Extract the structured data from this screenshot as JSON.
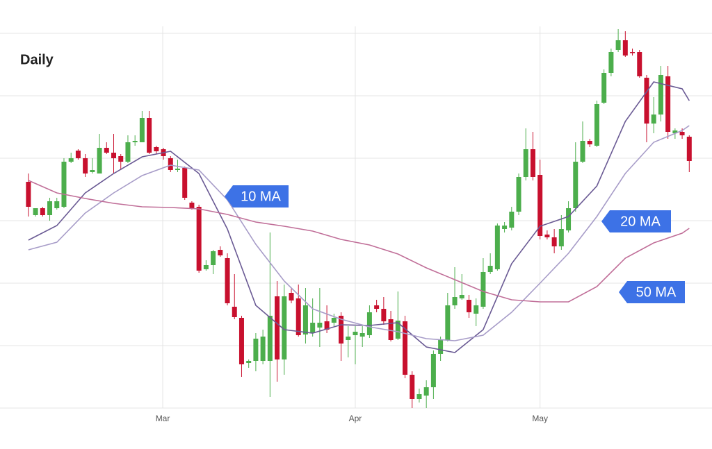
{
  "chart_data": {
    "type": "candlestick",
    "title": "Daily",
    "up_color": "#4cae4c",
    "down_color": "#c8102e",
    "xlim": [
      -4,
      96.2
    ],
    "xticks": [
      {
        "value": 18.9,
        "label": "Mar"
      },
      {
        "value": 46,
        "label": "Apr"
      },
      {
        "value": 72,
        "label": "May"
      }
    ],
    "ylim": [
      0,
      588
    ],
    "yticks": [
      0,
      90,
      180,
      270,
      360,
      450,
      540
    ],
    "show_ytick_labels": false,
    "grid": true,
    "open": [
      326,
      278,
      288,
      278,
      288,
      290,
      355,
      371,
      360,
      340,
      338,
      375,
      368,
      363,
      355,
      383,
      383,
      418,
      376,
      373,
      360,
      343,
      346,
      296,
      290,
      200,
      206,
      228,
      216,
      146,
      130,
      65,
      68,
      68,
      68,
      161,
      70,
      166,
      158,
      106,
      108,
      116,
      125,
      123,
      133,
      98,
      105,
      103,
      105,
      148,
      143,
      128,
      100,
      125,
      48,
      13,
      18,
      30,
      78,
      98,
      148,
      158,
      156,
      136,
      146,
      196,
      200,
      258,
      260,
      283,
      333,
      373,
      336,
      250,
      246,
      233,
      256,
      288,
      355,
      385,
      378,
      440,
      483,
      516,
      530,
      513,
      513,
      476,
      410,
      423,
      478,
      396,
      398,
      391
    ],
    "high": [
      338,
      288,
      290,
      303,
      303,
      360,
      368,
      373,
      366,
      360,
      395,
      383,
      395,
      366,
      393,
      393,
      428,
      428,
      378,
      375,
      363,
      358,
      348,
      298,
      293,
      213,
      228,
      233,
      223,
      193,
      133,
      70,
      108,
      113,
      253,
      183,
      178,
      173,
      178,
      173,
      158,
      173,
      148,
      136,
      138,
      118,
      118,
      118,
      148,
      156,
      160,
      140,
      168,
      133,
      53,
      28,
      40,
      83,
      103,
      166,
      203,
      193,
      163,
      158,
      216,
      223,
      266,
      268,
      290,
      338,
      403,
      398,
      358,
      256,
      258,
      278,
      298,
      383,
      413,
      388,
      443,
      488,
      518,
      546,
      543,
      518,
      516,
      480,
      448,
      493,
      493,
      403,
      403,
      393
    ],
    "low": [
      276,
      276,
      276,
      270,
      286,
      288,
      353,
      358,
      333,
      338,
      338,
      366,
      338,
      343,
      353,
      378,
      383,
      366,
      366,
      358,
      340,
      340,
      300,
      286,
      195,
      198,
      193,
      218,
      148,
      128,
      45,
      58,
      53,
      63,
      16,
      38,
      48,
      151,
      103,
      93,
      103,
      88,
      108,
      118,
      68,
      73,
      63,
      88,
      101,
      138,
      120,
      96,
      98,
      43,
      0,
      8,
      0,
      13,
      68,
      96,
      143,
      156,
      130,
      118,
      143,
      193,
      198,
      253,
      256,
      278,
      328,
      328,
      243,
      243,
      223,
      228,
      253,
      283,
      353,
      376,
      376,
      438,
      478,
      513,
      506,
      508,
      476,
      383,
      396,
      413,
      388,
      388,
      388,
      340
    ],
    "close": [
      290,
      288,
      278,
      298,
      298,
      355,
      360,
      360,
      338,
      343,
      375,
      368,
      360,
      355,
      383,
      385,
      418,
      368,
      370,
      363,
      343,
      345,
      303,
      288,
      198,
      206,
      226,
      220,
      151,
      131,
      63,
      68,
      100,
      103,
      133,
      70,
      161,
      155,
      105,
      148,
      123,
      123,
      113,
      130,
      93,
      103,
      110,
      108,
      138,
      143,
      125,
      98,
      126,
      48,
      13,
      20,
      30,
      78,
      98,
      148,
      160,
      163,
      138,
      148,
      196,
      205,
      263,
      263,
      283,
      333,
      373,
      333,
      248,
      246,
      233,
      258,
      288,
      355,
      385,
      380,
      438,
      483,
      513,
      530,
      508,
      512,
      478,
      410,
      423,
      480,
      398,
      400,
      393,
      356
    ],
    "moving_averages": [
      {
        "name": "10 MA",
        "color": "#6a5a94",
        "x": [
          0,
          4,
          8,
          12,
          16,
          20,
          24,
          28,
          32,
          36,
          40,
          44,
          48,
          52,
          56,
          60,
          64,
          68,
          72,
          76,
          80,
          84,
          88,
          92,
          93
        ],
        "values": [
          242,
          263,
          310,
          338,
          362,
          370,
          338,
          258,
          148,
          113,
          108,
          120,
          119,
          123,
          88,
          80,
          113,
          208,
          262,
          276,
          320,
          413,
          470,
          460,
          443
        ]
      },
      {
        "name": "20 MA",
        "color": "#a79cc8",
        "x": [
          0,
          4,
          8,
          12,
          16,
          20,
          24,
          28,
          32,
          36,
          40,
          44,
          48,
          52,
          56,
          60,
          64,
          68,
          72,
          76,
          80,
          84,
          88,
          92,
          93
        ],
        "values": [
          228,
          239,
          281,
          310,
          335,
          350,
          343,
          300,
          236,
          183,
          143,
          128,
          117,
          110,
          100,
          97,
          105,
          138,
          180,
          223,
          276,
          338,
          383,
          400,
          407
        ]
      },
      {
        "name": "50 MA",
        "color": "#c06e98",
        "x": [
          0,
          4,
          8,
          12,
          16,
          20,
          24,
          28,
          32,
          36,
          40,
          44,
          48,
          52,
          56,
          60,
          64,
          68,
          72,
          76,
          80,
          84,
          88,
          92,
          93
        ],
        "values": [
          328,
          310,
          302,
          295,
          290,
          289,
          287,
          279,
          268,
          262,
          255,
          243,
          235,
          222,
          202,
          185,
          168,
          156,
          153,
          153,
          175,
          216,
          238,
          252,
          259
        ]
      }
    ]
  }
}
